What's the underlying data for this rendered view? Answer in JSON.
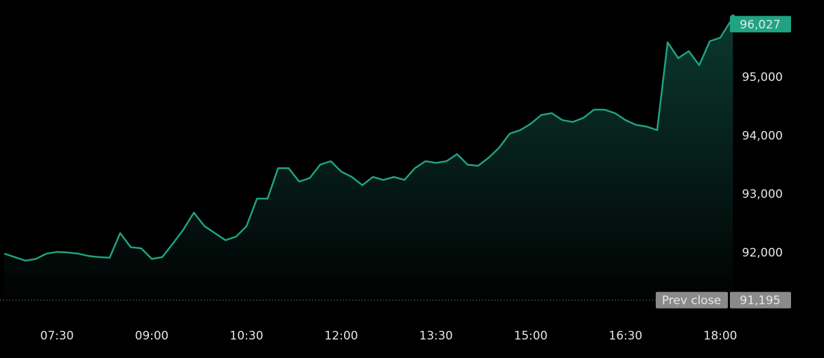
{
  "chart_data": {
    "type": "area",
    "x": [
      "06:40",
      "06:50",
      "07:00",
      "07:10",
      "07:20",
      "07:30",
      "07:40",
      "07:50",
      "08:00",
      "08:10",
      "08:20",
      "08:30",
      "08:40",
      "08:50",
      "09:00",
      "09:10",
      "09:20",
      "09:30",
      "09:40",
      "09:50",
      "10:00",
      "10:10",
      "10:20",
      "10:30",
      "10:40",
      "10:50",
      "11:00",
      "11:10",
      "11:20",
      "11:30",
      "11:40",
      "11:50",
      "12:00",
      "12:10",
      "12:20",
      "12:30",
      "12:40",
      "12:50",
      "13:00",
      "13:10",
      "13:20",
      "13:30",
      "13:40",
      "13:50",
      "14:00",
      "14:10",
      "14:20",
      "14:30",
      "14:40",
      "14:50",
      "15:00",
      "15:10",
      "15:20",
      "15:30",
      "15:40",
      "15:50",
      "16:00",
      "16:10",
      "16:20",
      "16:30",
      "16:40",
      "16:50",
      "17:00",
      "17:10",
      "17:20",
      "17:30",
      "17:40",
      "17:50",
      "18:00",
      "18:12"
    ],
    "series": [
      {
        "color": "#1fa383",
        "values": [
          91990,
          91930,
          91870,
          91900,
          91990,
          92020,
          92010,
          91990,
          91950,
          91930,
          91920,
          92340,
          92100,
          92080,
          91900,
          91930,
          92160,
          92400,
          92690,
          92460,
          92340,
          92220,
          92280,
          92460,
          92930,
          92930,
          93450,
          93450,
          93220,
          93280,
          93510,
          93570,
          93390,
          93300,
          93160,
          93300,
          93250,
          93300,
          93250,
          93450,
          93570,
          93540,
          93570,
          93690,
          93510,
          93490,
          93630,
          93800,
          94040,
          94100,
          94210,
          94360,
          94390,
          94270,
          94240,
          94310,
          94450,
          94450,
          94390,
          94270,
          94190,
          94160,
          94100,
          95600,
          95330,
          95450,
          95210,
          95620,
          95680,
          96027
        ]
      }
    ],
    "current": {
      "value": 96027,
      "label": "96,027"
    },
    "prev_close": {
      "name": "Prev close",
      "value": 91195,
      "label": "91,195"
    },
    "ylim": [
      91000,
      96300
    ],
    "yticks": [
      {
        "value": 92000,
        "label": "92,000"
      },
      {
        "value": 93000,
        "label": "93,000"
      },
      {
        "value": 94000,
        "label": "94,000"
      },
      {
        "value": 95000,
        "label": "95,000"
      }
    ],
    "xticks": [
      "07:30",
      "09:00",
      "10:30",
      "12:00",
      "13:30",
      "15:00",
      "16:30",
      "18:00"
    ]
  }
}
